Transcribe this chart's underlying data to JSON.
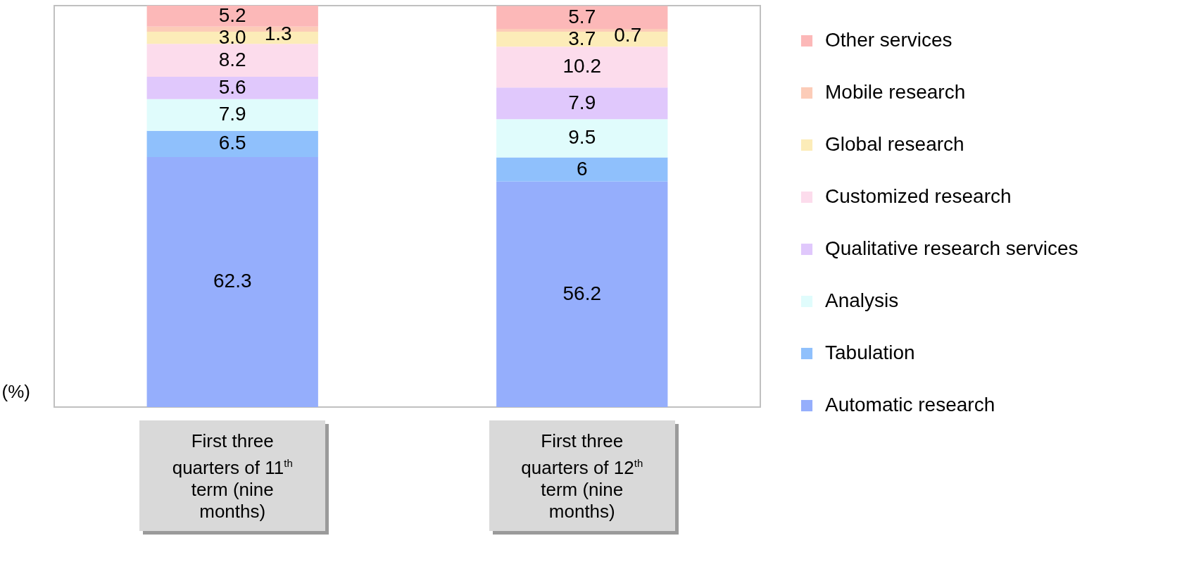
{
  "chart_data": {
    "type": "bar",
    "stacked": true,
    "ylabel": "(%)",
    "legend": "right",
    "ylim": [
      0,
      100
    ],
    "categories": [
      "First three quarters of 11$^{th}$ term (nine months)",
      "First three quarters of 12$^{th}$ term (nine months)"
    ],
    "series": [
      {
        "name": "Automatic research",
        "color": "#95aefc",
        "values": [
          62.3,
          56.2
        ],
        "value_labels": [
          "62.3",
          "56.2"
        ]
      },
      {
        "name": "Tabulation",
        "color": "#8fc0fc",
        "values": [
          6.5,
          6
        ],
        "value_labels": [
          "6.5",
          "6"
        ]
      },
      {
        "name": "Analysis",
        "color": "#e0fcfc",
        "values": [
          7.9,
          9.5
        ],
        "value_labels": [
          "7.9",
          "9.5"
        ]
      },
      {
        "name": "Qualitative research services",
        "color": "#e0c8fc",
        "values": [
          5.6,
          7.9
        ],
        "value_labels": [
          "5.6",
          "7.9"
        ]
      },
      {
        "name": "Customized research",
        "color": "#fcdcec",
        "values": [
          8.2,
          10.2
        ],
        "value_labels": [
          "8.2",
          "10.2"
        ]
      },
      {
        "name": "Global research",
        "color": "#fcecb8",
        "values": [
          3.0,
          3.7
        ],
        "value_labels": [
          "3.0",
          "3.7"
        ]
      },
      {
        "name": "Mobile research",
        "color": "#fcccb8",
        "values": [
          1.3,
          0.7
        ],
        "value_labels": [
          "1.3",
          "0.7"
        ]
      },
      {
        "name": "Other services",
        "color": "#fcb8b8",
        "values": [
          5.2,
          5.7
        ],
        "value_labels": [
          "5.2",
          "5.7"
        ]
      }
    ]
  }
}
